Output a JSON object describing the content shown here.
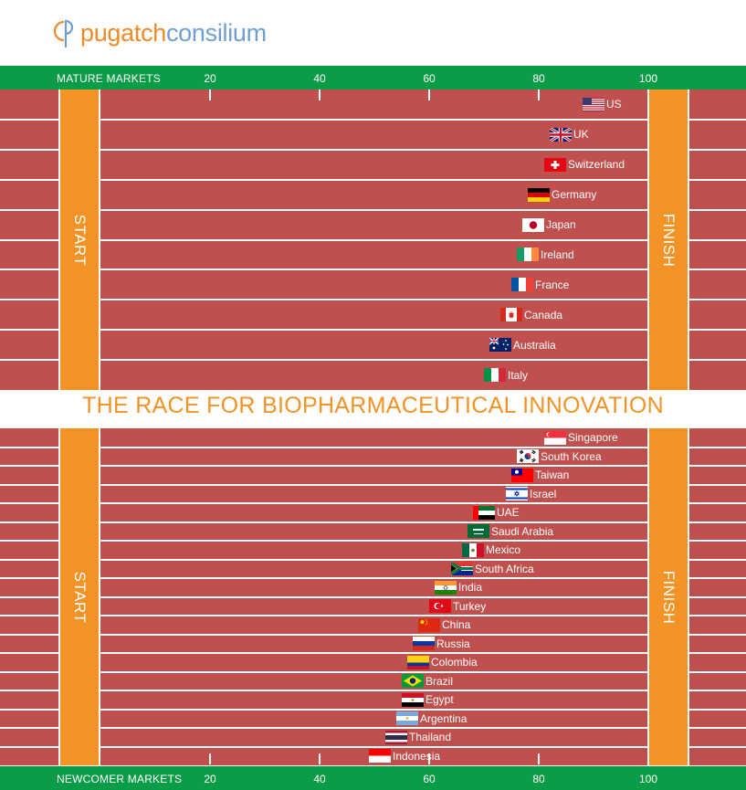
{
  "brand": {
    "part1": "pugatch",
    "part2": "consilium"
  },
  "headline": "THE RACE FOR BIOPHARMACEUTICAL INNOVATION",
  "colors": {
    "track": "#c0504d",
    "post": "#f39325",
    "axis_bar": "#0a9c47",
    "headline": "#f39325"
  },
  "chart_data": [
    {
      "type": "bar",
      "axis_name": "MATURE MARKETS",
      "ticks": [
        "20",
        "40",
        "60",
        "80",
        "100"
      ],
      "start_label": "START",
      "finish_label": "FINISH",
      "xlim": [
        0,
        100
      ],
      "categories": [
        "US",
        "UK",
        "Switzerland",
        "Germany",
        "Japan",
        "Ireland",
        "France",
        "Canada",
        "Australia",
        "Italy"
      ],
      "flags": [
        "us",
        "uk",
        "ch",
        "de",
        "jp",
        "ie",
        "fr",
        "ca",
        "au",
        "it"
      ],
      "values": [
        92,
        86,
        85,
        82,
        81,
        80,
        79,
        77,
        75,
        74
      ]
    },
    {
      "type": "bar",
      "axis_name": "NEWCOMER MARKETS",
      "ticks": [
        "20",
        "40",
        "60",
        "80",
        "100"
      ],
      "start_label": "START",
      "finish_label": "FINISH",
      "xlim": [
        0,
        100
      ],
      "categories": [
        "Singapore",
        "South Korea",
        "Taiwan",
        "Israel",
        "UAE",
        "Saudi Arabia",
        "Mexico",
        "South Africa",
        "India",
        "Turkey",
        "China",
        "Russia",
        "Colombia",
        "Brazil",
        "Egypt",
        "Argentina",
        "Thailand",
        "Indonesia"
      ],
      "flags": [
        "sg",
        "kr",
        "tw",
        "il",
        "ae",
        "sa",
        "mx",
        "za",
        "in",
        "tr",
        "cn",
        "ru",
        "co",
        "br",
        "eg",
        "ar",
        "th",
        "id"
      ],
      "values": [
        85,
        80,
        79,
        78,
        72,
        71,
        70,
        68,
        65,
        64,
        62,
        61,
        60,
        59,
        59,
        58,
        56,
        53
      ]
    }
  ]
}
